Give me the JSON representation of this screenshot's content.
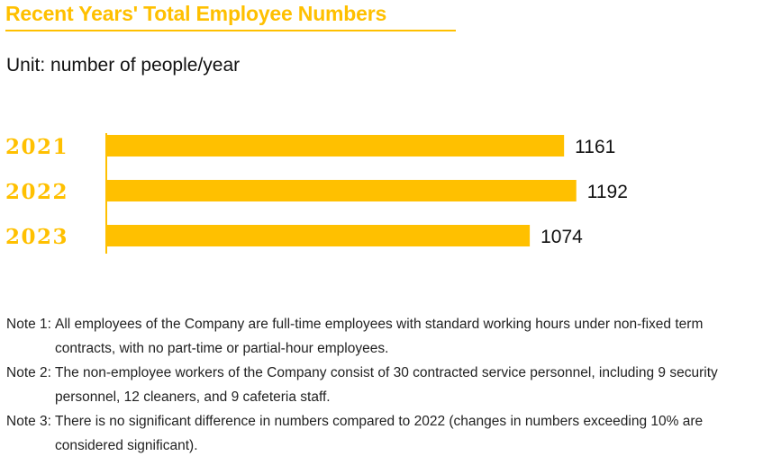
{
  "title": "Recent Years' Total Employee Numbers",
  "unit": "Unit: number of people/year",
  "colors": {
    "accent": "#FFC000",
    "text": "#111111"
  },
  "chart_data": {
    "type": "bar",
    "orientation": "horizontal",
    "categories": [
      "2021",
      "2022",
      "2023"
    ],
    "values": [
      1161,
      1192,
      1074
    ],
    "value_labels": [
      "1161",
      "1192",
      "1074"
    ],
    "title": "Recent Years' Total Employee Numbers",
    "xlabel": "",
    "ylabel": "",
    "unit": "Unit: number of people/year",
    "xlim": [
      0,
      1220
    ],
    "grid": false,
    "legend": "none",
    "bar_color": "#FFC000"
  },
  "notes": [
    {
      "label": "Note 1:",
      "text": "All employees of the Company are full-time employees with standard working hours under non-fixed term contracts, with no part-time or partial-hour employees."
    },
    {
      "label": "Note 2:",
      "text": "The non-employee workers of the Company consist of 30 contracted service personnel, including 9 security personnel, 12 cleaners, and 9 cafeteria staff."
    },
    {
      "label": "Note 3:",
      "text": "There is no significant difference in numbers compared to 2022 (changes in numbers exceeding 10% are considered significant)."
    }
  ]
}
